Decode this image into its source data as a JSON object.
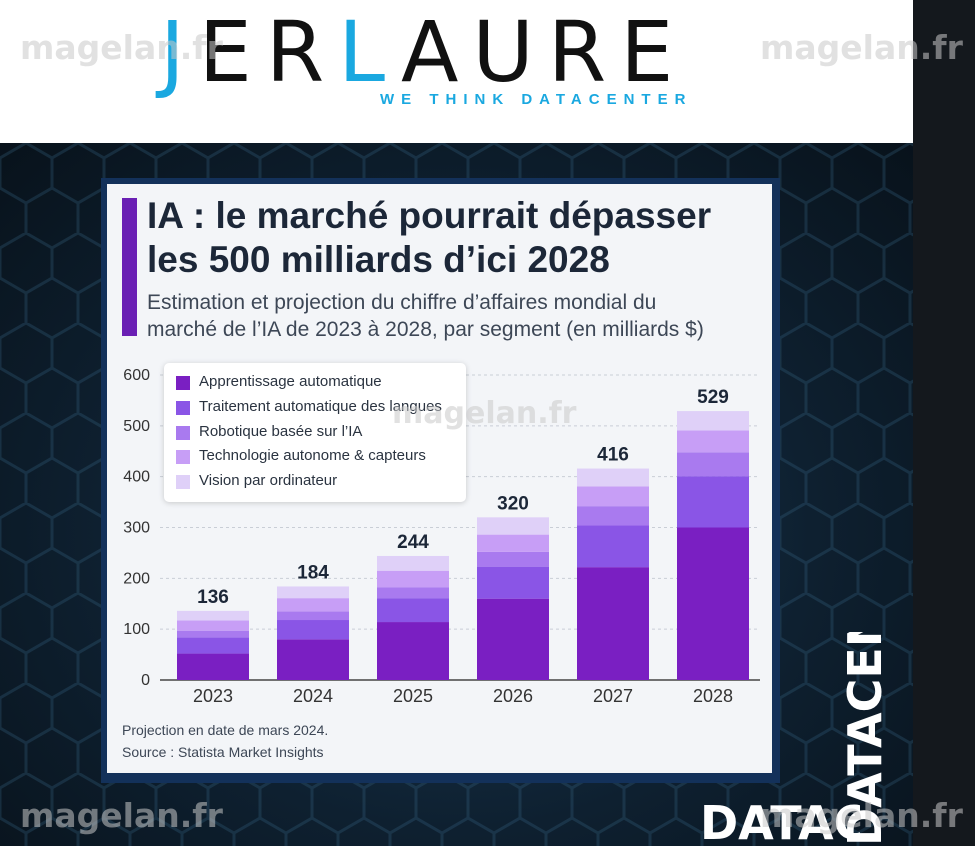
{
  "header": {
    "logo_text_part1": "J",
    "logo_text_part2": "ER",
    "logo_text_part3": "L",
    "logo_text_part4": "AURE",
    "tagline": "WE THINK DATACENTER"
  },
  "watermarks": {
    "text": "magelan.fr"
  },
  "side_text": "DATACENTER",
  "chart_data": {
    "type": "bar",
    "stacked": true,
    "title": "IA : le marché pourrait dépasser les 500 milliards d’ici 2028",
    "title_line1": "IA : le marché pourrait dépasser",
    "title_line2": "les 500 milliards d’ici 2028",
    "subtitle_line1": "Estimation et projection du chiffre d’affaires mondial du",
    "subtitle_line2": "marché de l’IA de 2023 à 2028, par segment (en milliards $)",
    "categories": [
      "2023",
      "2024",
      "2025",
      "2026",
      "2027",
      "2028"
    ],
    "totals": [
      136,
      184,
      244,
      320,
      416,
      529
    ],
    "ylim": [
      0,
      600
    ],
    "yticks": [
      0,
      100,
      200,
      300,
      400,
      500,
      600
    ],
    "grid": true,
    "legend_position": "top-left",
    "series": [
      {
        "name": "Apprentissage automatique",
        "color": "#7a1fc2",
        "values": [
          52,
          80,
          114,
          160,
          222,
          300
        ]
      },
      {
        "name": "Traitement automatique des langues",
        "color": "#8a55e6",
        "values": [
          32,
          38,
          47,
          63,
          82,
          101
        ]
      },
      {
        "name": "Robotique basée sur l’IA",
        "color": "#a97aef",
        "values": [
          13,
          17,
          21,
          29,
          38,
          47
        ]
      },
      {
        "name": "Technologie autonome & capteurs",
        "color": "#c79ef6",
        "values": [
          20,
          26,
          33,
          34,
          39,
          43
        ]
      },
      {
        "name": "Vision par ordinateur",
        "color": "#dfd0f8",
        "values": [
          19,
          23,
          29,
          34,
          35,
          38
        ]
      }
    ],
    "footnote": "Projection en date de mars 2024.",
    "source": "Source : Statista Market Insights"
  }
}
